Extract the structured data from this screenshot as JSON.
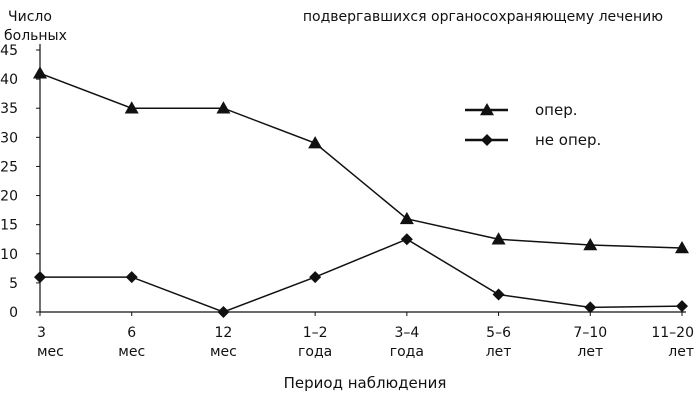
{
  "chart_data": {
    "type": "line",
    "title": "подвергавшихся органосохраняющему лечению",
    "ylabel_lines": [
      "Число",
      "больных"
    ],
    "xlabel": "Период наблюдения",
    "categories": [
      [
        "3",
        "мес"
      ],
      [
        "6",
        "мес"
      ],
      [
        "12",
        "мес"
      ],
      [
        "1–2",
        "года"
      ],
      [
        "3–4",
        "года"
      ],
      [
        "5–6",
        "лет"
      ],
      [
        "7–10",
        "лет"
      ],
      [
        "11–20",
        "лет"
      ]
    ],
    "ylim": [
      0,
      45
    ],
    "yticks": [
      0,
      5,
      10,
      15,
      20,
      25,
      30,
      35,
      40,
      45
    ],
    "grid": false,
    "legend_position": "right",
    "series": [
      {
        "name": "опер.",
        "marker": "triangle",
        "color": "#111111",
        "values": [
          41,
          35,
          35,
          29,
          16,
          12.5,
          11.5,
          11
        ]
      },
      {
        "name": "не опер.",
        "marker": "diamond",
        "color": "#111111",
        "values": [
          6,
          6,
          0,
          6,
          12.5,
          3,
          0.8,
          1
        ]
      }
    ]
  }
}
